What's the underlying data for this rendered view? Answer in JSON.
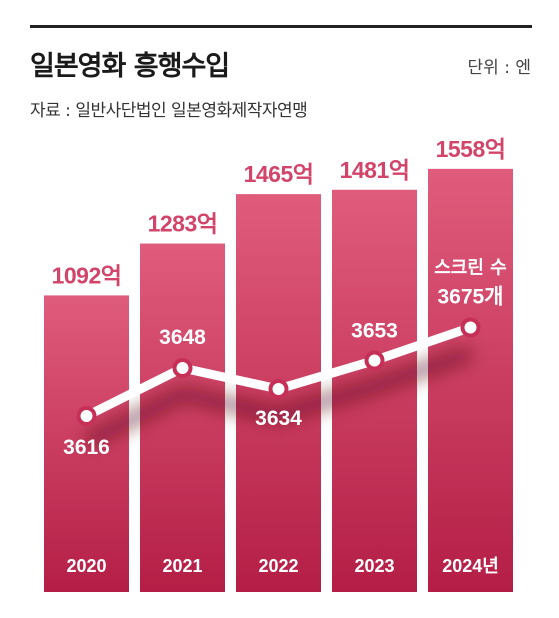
{
  "header": {
    "title": "일본영화 흥행수입",
    "unit": "단위 : 엔",
    "source": "자료 : 일반사단법인 일본영화제작자연맹"
  },
  "colors": {
    "bar_top": "#e05c7c",
    "bar_bottom": "#b41e46",
    "label": "#d2446a",
    "line": "#ffffff"
  },
  "chart_data": {
    "type": "bar",
    "categories": [
      "2020",
      "2021",
      "2022",
      "2023",
      "2024년"
    ],
    "series": [
      {
        "values": [
          1092,
          1283,
          1465,
          1481,
          1558
        ],
        "labels": [
          "1092억",
          "1283억",
          "1465억",
          "1481억",
          "1558억"
        ]
      },
      {
        "name": "스크린 수",
        "type": "line",
        "values": [
          3616,
          3648,
          3634,
          3653,
          3675
        ],
        "labels": [
          "3616",
          "3648",
          "3634",
          "3653",
          "3675개"
        ]
      }
    ],
    "annotation": "스크린 수",
    "ylim": [
      0,
      1600
    ],
    "line_ylim": [
      3590,
      3690
    ],
    "grid": false,
    "legend": "none"
  }
}
